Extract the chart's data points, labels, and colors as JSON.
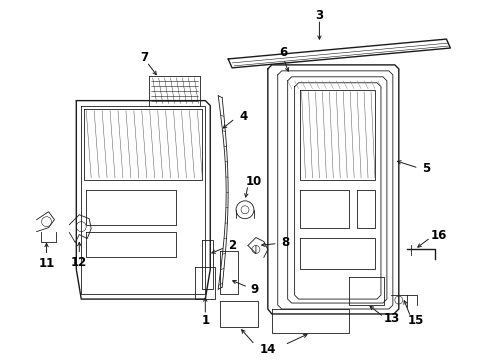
{
  "background": "#ffffff",
  "line_color": "#1a1a1a",
  "label_color": "#000000",
  "figsize": [
    4.9,
    3.6
  ],
  "dpi": 100
}
